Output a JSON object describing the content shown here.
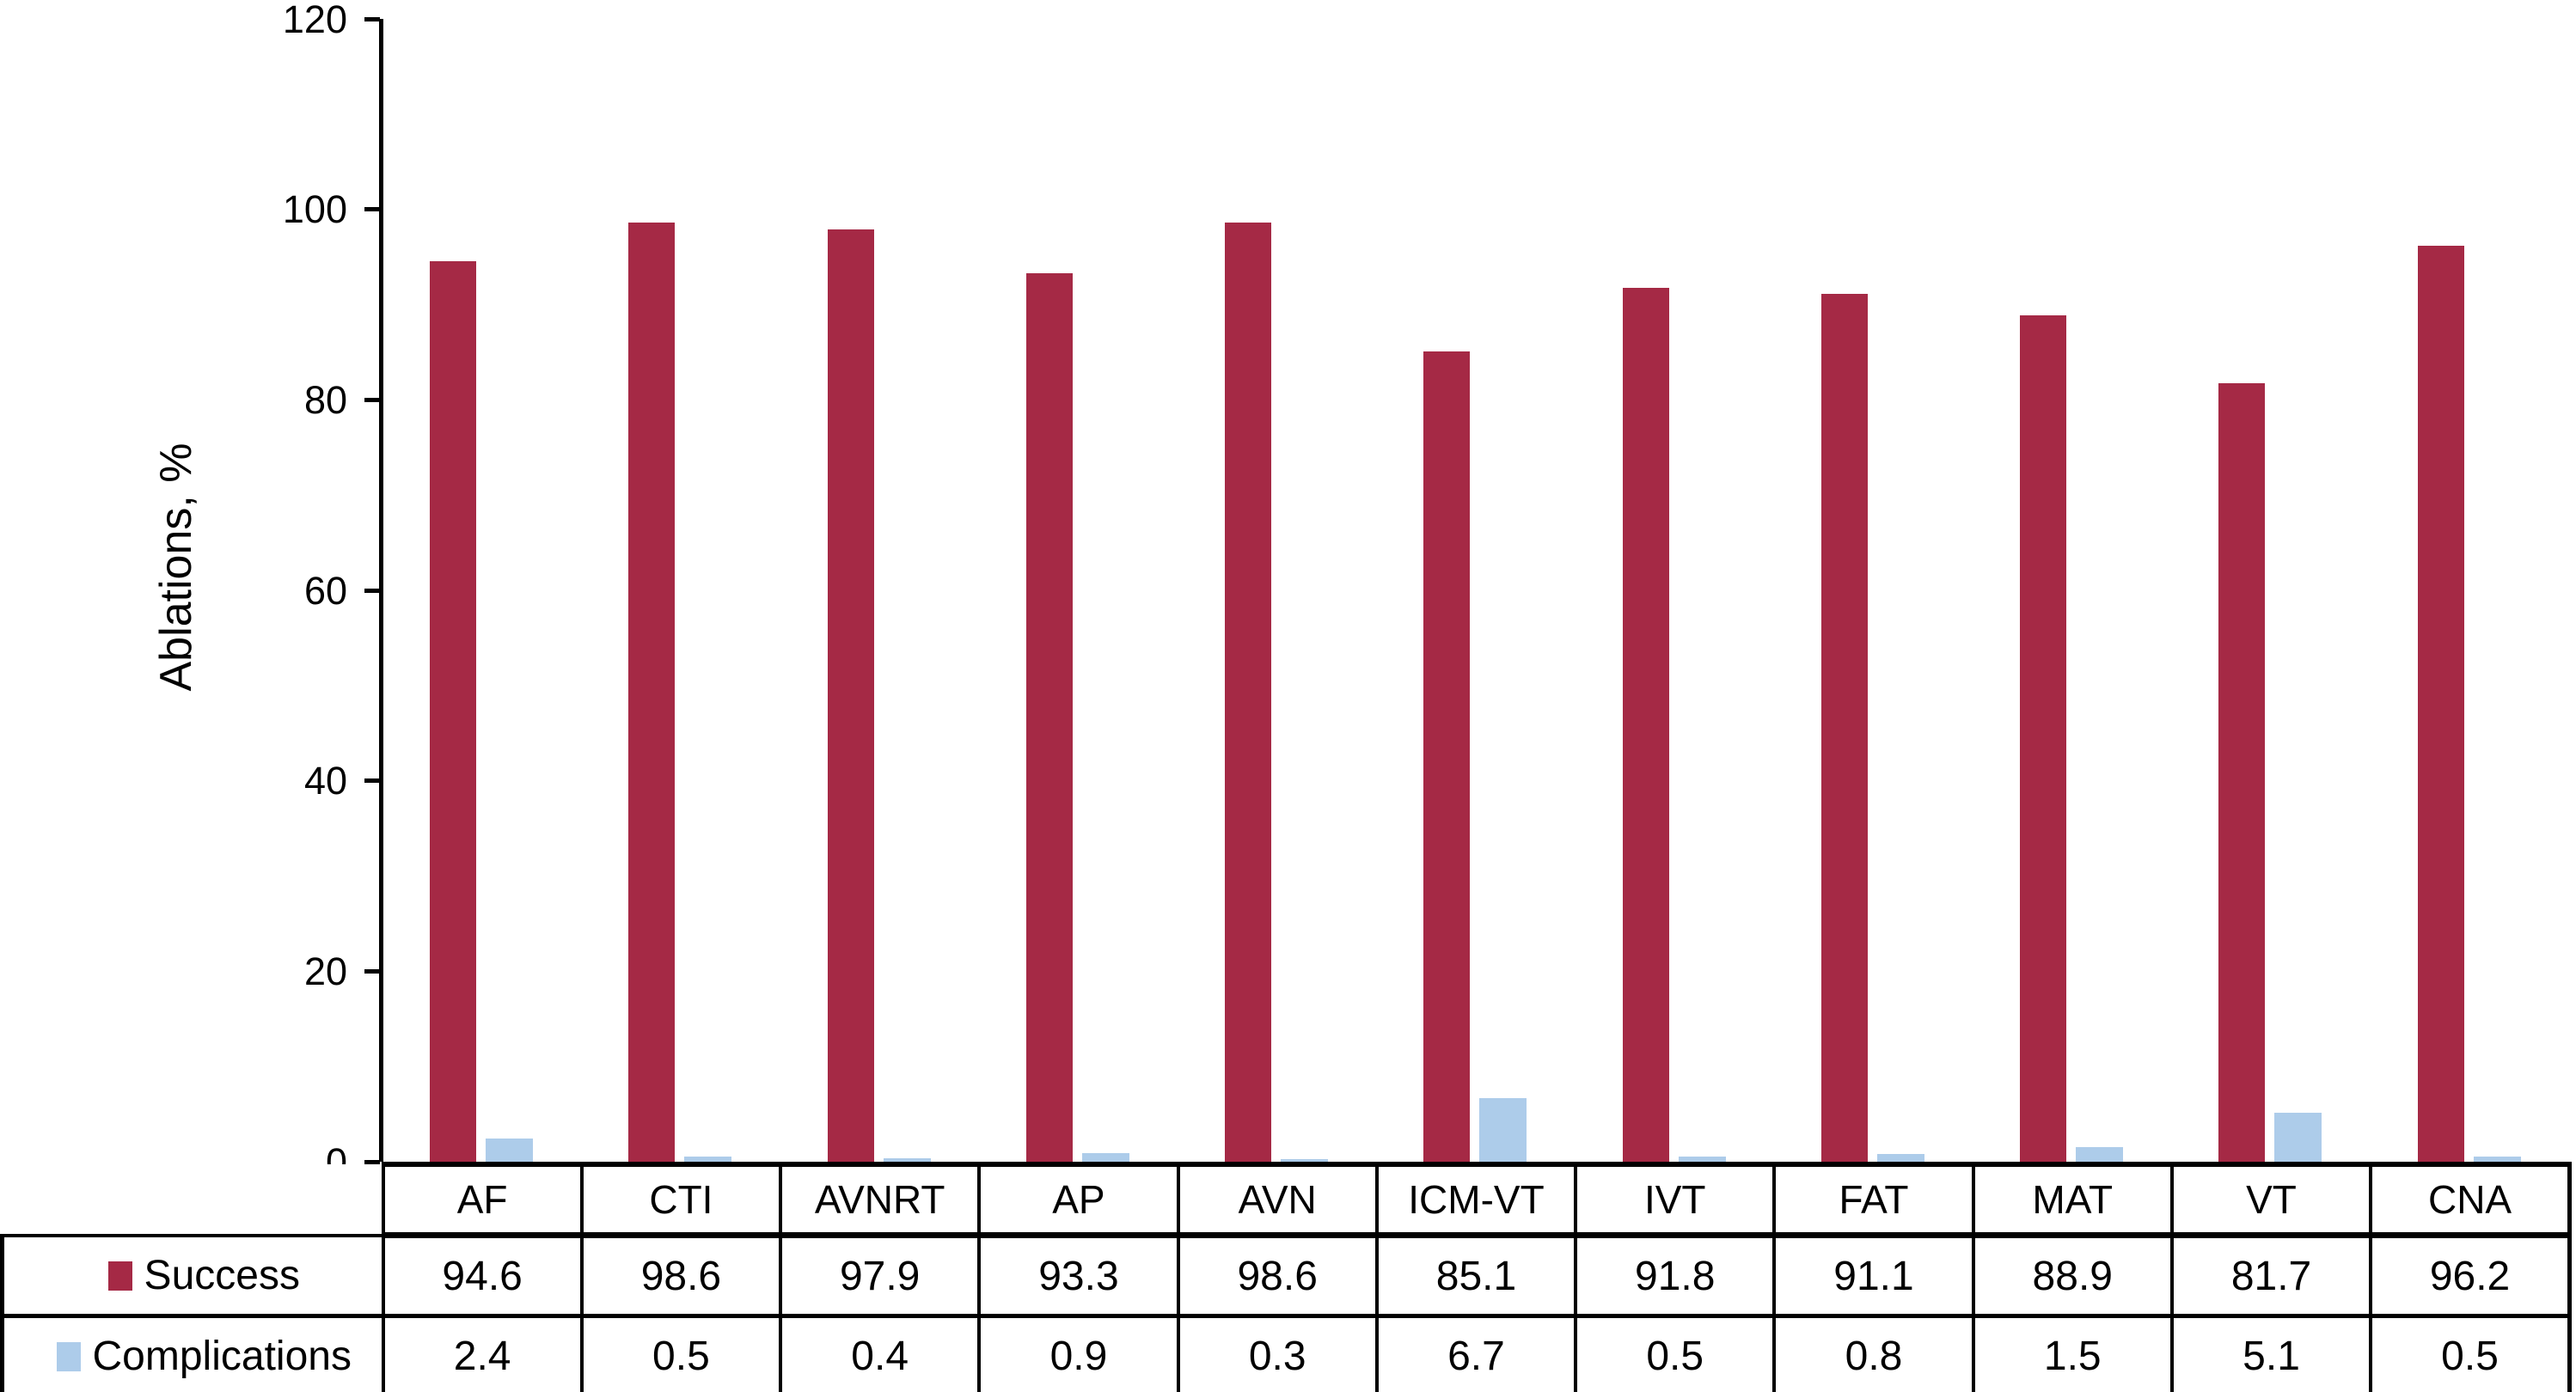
{
  "chart_data": {
    "type": "bar",
    "title": "",
    "ylabel": "Ablations, %",
    "xlabel": "",
    "ylim": [
      0,
      120
    ],
    "yticks": [
      0,
      20,
      40,
      60,
      80,
      100,
      120
    ],
    "grid": false,
    "legend_position": "table-left",
    "data_table_shown": true,
    "categories": [
      "AF",
      "CTI",
      "AVNRT",
      "AP",
      "AVN",
      "ICM-VT",
      "IVT",
      "FAT",
      "MAT",
      "VT",
      "CNA"
    ],
    "series": [
      {
        "name": "Success",
        "color": "#A52945",
        "values": [
          94.6,
          98.6,
          97.9,
          93.3,
          98.6,
          85.1,
          91.8,
          91.1,
          88.9,
          81.7,
          96.2
        ],
        "value_labels": [
          "94.6",
          "98.6",
          "97.9",
          "93.3",
          "98.6",
          "85.1",
          "91.8",
          "91.1",
          "88.9",
          "81.7",
          "96.2"
        ]
      },
      {
        "name": "Complications",
        "color": "#ADCCEA",
        "values": [
          2.4,
          0.5,
          0.4,
          0.9,
          0.3,
          6.7,
          0.5,
          0.8,
          1.5,
          5.1,
          0.5
        ],
        "value_labels": [
          "2.4",
          "0.5",
          "0.4",
          "0.9",
          "0.3",
          "6.7",
          "0.5",
          "0.8",
          "1.5",
          "5.1",
          "0.5"
        ]
      }
    ],
    "axis_color": "#000000",
    "tick_labels": [
      "0",
      "20",
      "40",
      "60",
      "80",
      "100",
      "120"
    ]
  }
}
